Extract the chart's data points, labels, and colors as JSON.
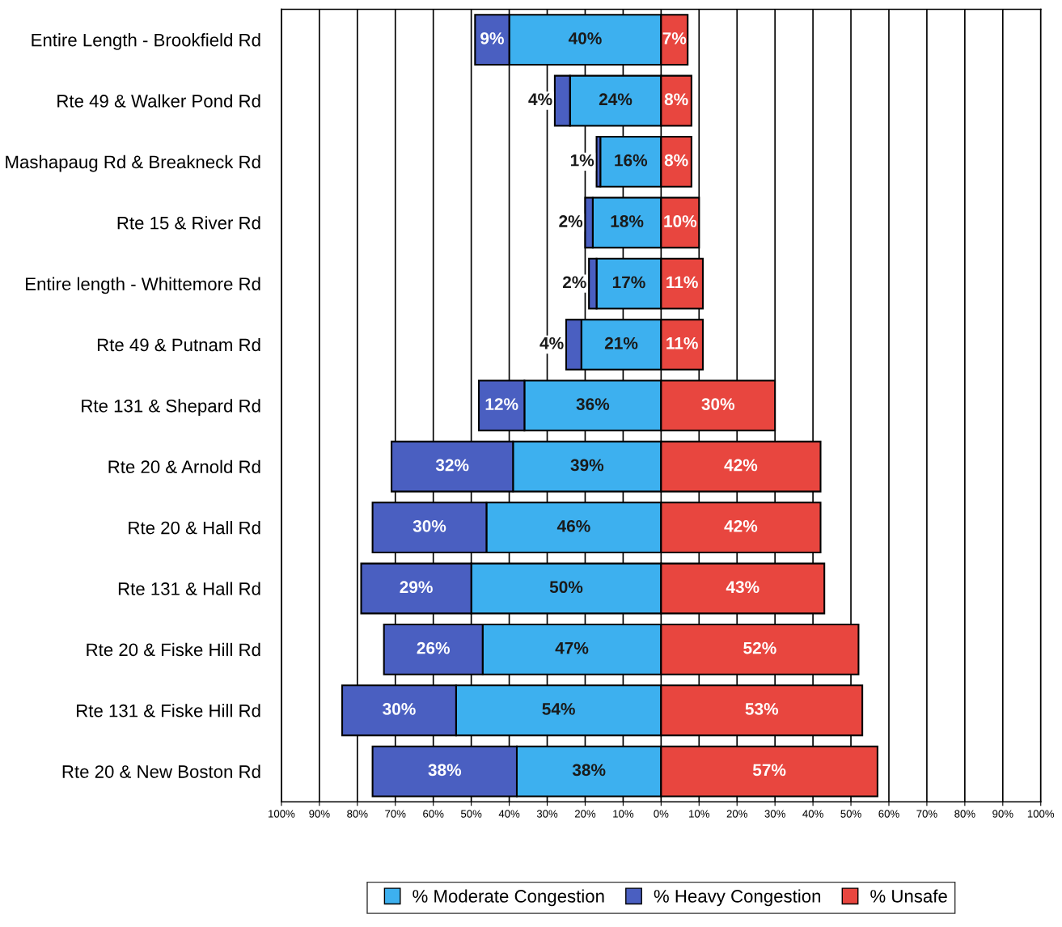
{
  "chart_data": {
    "type": "bar",
    "orientation": "horizontal",
    "categories": [
      "Entire Length - Brookfield Rd",
      "Rte 49 & Walker Pond Rd",
      "Mashapaug Rd & Breakneck Rd",
      "Rte 15 & River Rd",
      "Entire length - Whittemore Rd",
      "Rte 49 & Putnam Rd",
      "Rte 131 & Shepard Rd",
      "Rte 20 & Arnold Rd",
      "Rte 20 & Hall Rd",
      "Rte 131 & Hall Rd",
      "Rte 20 & Fiske Hill Rd",
      "Rte 131 & Fiske Hill Rd",
      "Rte 20 & New Boston Rd"
    ],
    "series": [
      {
        "name": "% Moderate Congestion",
        "color": "#3db0ef",
        "values": [
          40,
          24,
          16,
          18,
          17,
          21,
          36,
          39,
          46,
          50,
          47,
          54,
          38
        ],
        "base": [
          -40,
          -24,
          -16,
          -18,
          -17,
          -21,
          -36,
          -39,
          -46,
          -50,
          -47,
          -54,
          -38
        ],
        "value_labels": [
          "40%",
          "24%",
          "16%",
          "18%",
          "17%",
          "21%",
          "36%",
          "39%",
          "46%",
          "50%",
          "47%",
          "54%",
          "38%"
        ]
      },
      {
        "name": "% Heavy Congestion",
        "color": "#4a5fc1",
        "values": [
          9,
          4,
          1,
          2,
          2,
          4,
          12,
          32,
          30,
          29,
          26,
          30,
          38
        ],
        "base": [
          -49,
          -28,
          -17,
          -20,
          -19,
          -25,
          -48,
          -71,
          -76,
          -79,
          -73,
          -84,
          -76
        ],
        "value_labels": [
          "9%",
          "4%",
          "1%",
          "2%",
          "2%",
          "4%",
          "12%",
          "32%",
          "30%",
          "29%",
          "26%",
          "30%",
          "38%"
        ]
      },
      {
        "name": "% Unsafe",
        "color": "#e8463f",
        "values": [
          7,
          8,
          8,
          10,
          11,
          11,
          30,
          42,
          42,
          43,
          52,
          53,
          57
        ],
        "value_labels": [
          "7%",
          "8%",
          "8%",
          "10%",
          "11%",
          "11%",
          "30%",
          "42%",
          "42%",
          "43%",
          "52%",
          "53%",
          "57%"
        ]
      }
    ],
    "xlim": [
      -100,
      100
    ],
    "xticks": [
      {
        "value": -100,
        "label": "100%"
      },
      {
        "value": -90,
        "label": "90%"
      },
      {
        "value": -80,
        "label": "80%"
      },
      {
        "value": -70,
        "label": "70%"
      },
      {
        "value": -60,
        "label": "60%"
      },
      {
        "value": -50,
        "label": "50%"
      },
      {
        "value": -40,
        "label": "40%"
      },
      {
        "value": -30,
        "label": "30%"
      },
      {
        "value": -20,
        "label": "20%"
      },
      {
        "value": -10,
        "label": "10%"
      },
      {
        "value": 0,
        "label": "0%"
      },
      {
        "value": 10,
        "label": "10%"
      },
      {
        "value": 20,
        "label": "20%"
      },
      {
        "value": 30,
        "label": "30%"
      },
      {
        "value": 40,
        "label": "40%"
      },
      {
        "value": 50,
        "label": "50%"
      },
      {
        "value": 60,
        "label": "60%"
      },
      {
        "value": 70,
        "label": "70%"
      },
      {
        "value": 80,
        "label": "80%"
      },
      {
        "value": 90,
        "label": "90%"
      },
      {
        "value": 100,
        "label": "100%"
      }
    ],
    "grid": "x",
    "legend": "bottom",
    "marker": "square"
  }
}
